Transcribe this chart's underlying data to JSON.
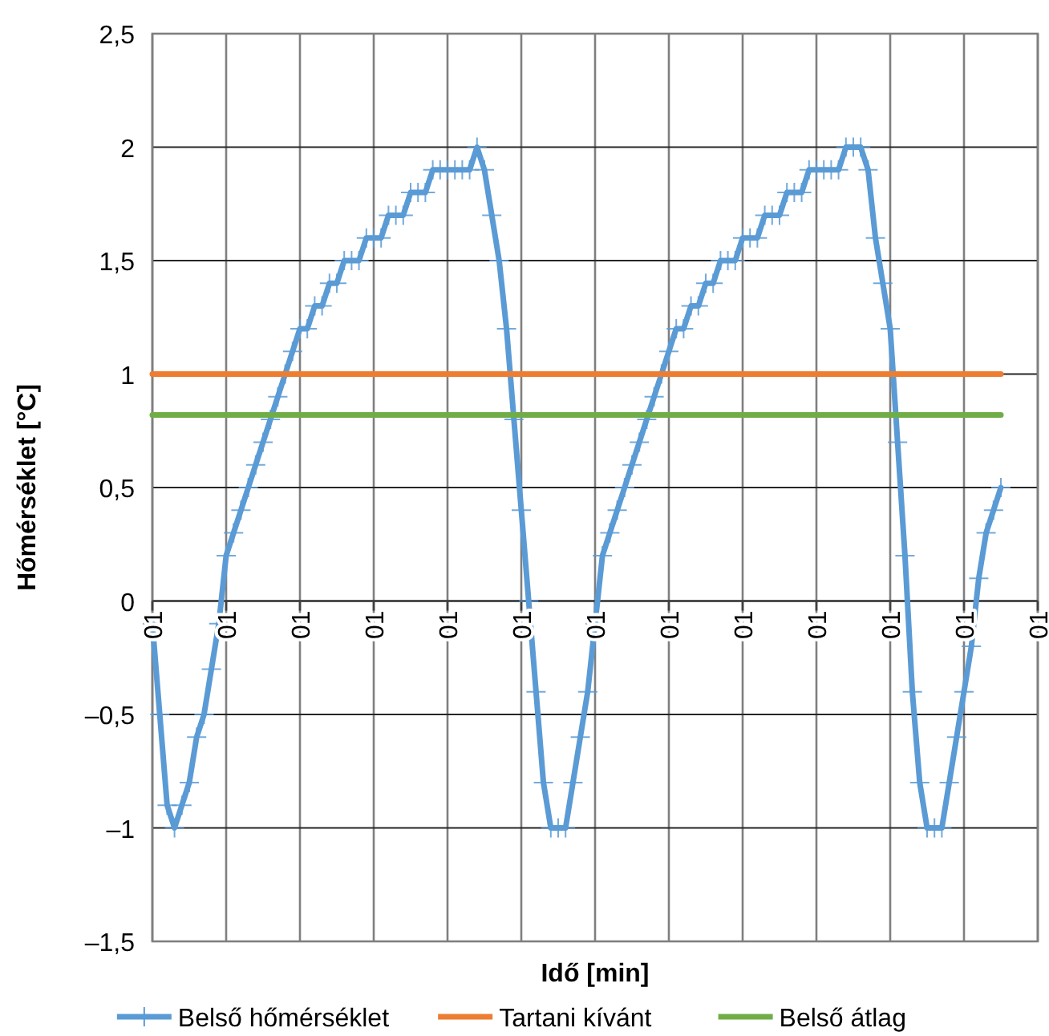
{
  "chart_data": {
    "type": "line",
    "xlabel": "Idő [min]",
    "ylabel": "Hőmérséklet [°C]",
    "categories": [
      "01",
      null,
      null,
      null,
      null,
      null,
      null,
      null,
      null,
      null,
      "01",
      null,
      null,
      null,
      null,
      null,
      null,
      null,
      null,
      null,
      "01",
      null,
      null,
      null,
      null,
      null,
      null,
      null,
      null,
      null,
      "01",
      null,
      null,
      null,
      null,
      null,
      null,
      null,
      null,
      null,
      "01",
      null,
      null,
      null,
      null,
      null,
      null,
      null,
      null,
      null,
      "01",
      null,
      null,
      null,
      null,
      null,
      null,
      null,
      null,
      null,
      "01",
      null,
      null,
      null,
      null,
      null,
      null,
      null,
      null,
      null,
      "01",
      null,
      null,
      null,
      null,
      null,
      null,
      null,
      null,
      null,
      "01",
      null,
      null,
      null,
      null,
      null,
      null,
      null,
      null,
      null,
      "01",
      null,
      null,
      null,
      null,
      null,
      null,
      null,
      null,
      null,
      "01",
      null,
      null,
      null,
      null,
      null,
      null,
      null,
      null,
      null,
      "01",
      null,
      null,
      null,
      null,
      null,
      null,
      null,
      null,
      null,
      "01"
    ],
    "series": [
      {
        "name": "Belső hőmérséklet",
        "color": "#5b9bd5",
        "marker": "cross",
        "values": [
          -0.1,
          -0.5,
          -0.9,
          -1.0,
          -0.9,
          -0.8,
          -0.6,
          -0.5,
          -0.3,
          -0.1,
          0.2,
          0.3,
          0.4,
          0.5,
          0.6,
          0.7,
          0.8,
          0.9,
          1.0,
          1.1,
          1.2,
          1.2,
          1.3,
          1.3,
          1.4,
          1.4,
          1.5,
          1.5,
          1.5,
          1.6,
          1.6,
          1.6,
          1.7,
          1.7,
          1.7,
          1.8,
          1.8,
          1.8,
          1.9,
          1.9,
          1.9,
          1.9,
          1.9,
          1.9,
          2.0,
          1.9,
          1.7,
          1.5,
          1.2,
          0.8,
          0.4,
          0.0,
          -0.4,
          -0.8,
          -1.0,
          -1.0,
          -1.0,
          -0.8,
          -0.6,
          -0.4,
          -0.1,
          0.2,
          0.3,
          0.4,
          0.5,
          0.6,
          0.7,
          0.8,
          0.9,
          1.0,
          1.1,
          1.2,
          1.2,
          1.3,
          1.3,
          1.4,
          1.4,
          1.5,
          1.5,
          1.5,
          1.6,
          1.6,
          1.6,
          1.7,
          1.7,
          1.7,
          1.8,
          1.8,
          1.8,
          1.9,
          1.9,
          1.9,
          1.9,
          1.9,
          2.0,
          2.0,
          2.0,
          1.9,
          1.6,
          1.4,
          1.2,
          0.7,
          0.2,
          -0.4,
          -0.8,
          -1.0,
          -1.0,
          -1.0,
          -0.8,
          -0.6,
          -0.4,
          -0.2,
          0.1,
          0.3,
          0.4,
          0.5,
          null,
          null,
          null,
          null,
          null
        ]
      },
      {
        "name": "Tartani kívánt",
        "color": "#ed7d31",
        "marker": "none",
        "values": [
          1,
          1,
          1,
          1,
          1,
          1,
          1,
          1,
          1,
          1,
          1,
          1,
          1,
          1,
          1,
          1,
          1,
          1,
          1,
          1,
          1,
          1,
          1,
          1,
          1,
          1,
          1,
          1,
          1,
          1,
          1,
          1,
          1,
          1,
          1,
          1,
          1,
          1,
          1,
          1,
          1,
          1,
          1,
          1,
          1,
          1,
          1,
          1,
          1,
          1,
          1,
          1,
          1,
          1,
          1,
          1,
          1,
          1,
          1,
          1,
          1,
          1,
          1,
          1,
          1,
          1,
          1,
          1,
          1,
          1,
          1,
          1,
          1,
          1,
          1,
          1,
          1,
          1,
          1,
          1,
          1,
          1,
          1,
          1,
          1,
          1,
          1,
          1,
          1,
          1,
          1,
          1,
          1,
          1,
          1,
          1,
          1,
          1,
          1,
          1,
          1,
          1,
          1,
          1,
          1,
          1,
          1,
          1,
          1,
          1,
          1,
          1,
          1,
          1,
          1,
          1,
          null,
          null,
          null,
          null,
          null
        ]
      },
      {
        "name": "Belső átlag",
        "color": "#70ad47",
        "marker": "none",
        "values": [
          0.82,
          0.82,
          0.82,
          0.82,
          0.82,
          0.82,
          0.82,
          0.82,
          0.82,
          0.82,
          0.82,
          0.82,
          0.82,
          0.82,
          0.82,
          0.82,
          0.82,
          0.82,
          0.82,
          0.82,
          0.82,
          0.82,
          0.82,
          0.82,
          0.82,
          0.82,
          0.82,
          0.82,
          0.82,
          0.82,
          0.82,
          0.82,
          0.82,
          0.82,
          0.82,
          0.82,
          0.82,
          0.82,
          0.82,
          0.82,
          0.82,
          0.82,
          0.82,
          0.82,
          0.82,
          0.82,
          0.82,
          0.82,
          0.82,
          0.82,
          0.82,
          0.82,
          0.82,
          0.82,
          0.82,
          0.82,
          0.82,
          0.82,
          0.82,
          0.82,
          0.82,
          0.82,
          0.82,
          0.82,
          0.82,
          0.82,
          0.82,
          0.82,
          0.82,
          0.82,
          0.82,
          0.82,
          0.82,
          0.82,
          0.82,
          0.82,
          0.82,
          0.82,
          0.82,
          0.82,
          0.82,
          0.82,
          0.82,
          0.82,
          0.82,
          0.82,
          0.82,
          0.82,
          0.82,
          0.82,
          0.82,
          0.82,
          0.82,
          0.82,
          0.82,
          0.82,
          0.82,
          0.82,
          0.82,
          0.82,
          0.82,
          0.82,
          0.82,
          0.82,
          0.82,
          0.82,
          0.82,
          0.82,
          0.82,
          0.82,
          0.82,
          0.82,
          0.82,
          0.82,
          0.82,
          0.82,
          null,
          null,
          null,
          null,
          null
        ]
      }
    ],
    "ylim": [
      -1.5,
      2.5
    ],
    "yticks": [
      {
        "value": -1.5,
        "label": "–1,5"
      },
      {
        "value": -1,
        "label": "–1"
      },
      {
        "value": -0.5,
        "label": "–0,5"
      },
      0,
      {
        "value": 0.5,
        "label": "0,5"
      },
      1,
      {
        "value": 1.5,
        "label": "1,5"
      },
      2,
      {
        "value": 2.5,
        "label": "2,5"
      }
    ],
    "grid": true,
    "legend": "bottom",
    "line_style": "solid"
  }
}
